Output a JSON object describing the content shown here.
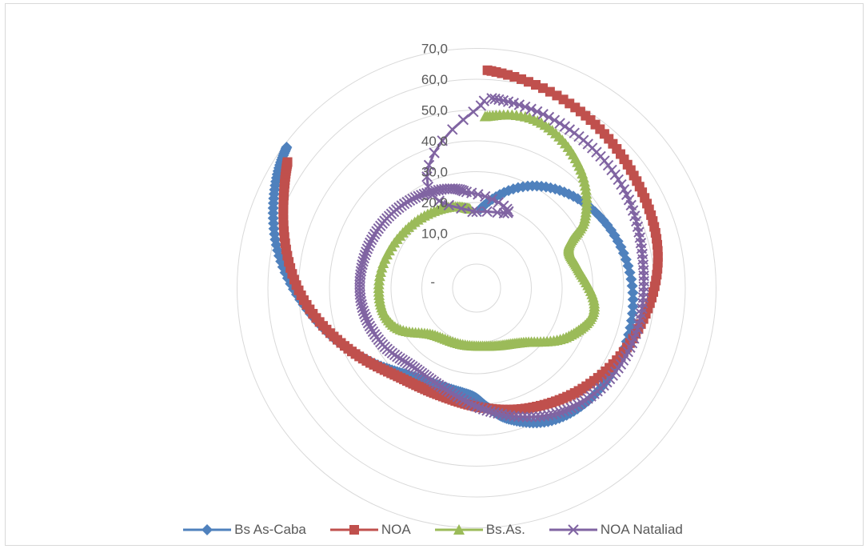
{
  "chart_data": {
    "type": "radar",
    "title": "",
    "radial_ticks": [
      "-",
      "10,0",
      "20,0",
      "30,0",
      "40,0",
      "50,0",
      "60,0",
      "70,0"
    ],
    "rmax": 70,
    "grid": true,
    "legend_position": "bottom",
    "series": [
      {
        "name": "Bs As-Caba",
        "color": "#4f81bd",
        "marker": "diamond",
        "points": [
          [
            0.05,
            18
          ],
          [
            0.5,
            30
          ],
          [
            1.0,
            38
          ],
          [
            1.6,
            43
          ],
          [
            2.2,
            44
          ],
          [
            2.6,
            42
          ],
          [
            2.9,
            36
          ],
          [
            3.05,
            31
          ],
          [
            3.2,
            27
          ],
          [
            3.5,
            26
          ],
          [
            3.8,
            28
          ],
          [
            4.1,
            34
          ],
          [
            4.5,
            45
          ],
          [
            4.9,
            58
          ],
          [
            5.2,
            66
          ],
          [
            5.35,
            69
          ]
        ]
      },
      {
        "name": "NOA",
        "color": "#c0504d",
        "marker": "square",
        "points": [
          [
            0.05,
            63
          ],
          [
            0.5,
            59
          ],
          [
            0.95,
            55
          ],
          [
            1.4,
            52
          ],
          [
            1.85,
            46
          ],
          [
            2.3,
            40
          ],
          [
            2.7,
            35
          ],
          [
            3.1,
            31
          ],
          [
            3.5,
            29
          ],
          [
            3.9,
            31
          ],
          [
            4.3,
            39
          ],
          [
            4.7,
            50
          ],
          [
            5.1,
            60
          ],
          [
            5.3,
            66
          ]
        ]
      },
      {
        "name": "Bs.As.",
        "color": "#9bbb59",
        "marker": "triangle",
        "points": [
          [
            0.05,
            48
          ],
          [
            0.35,
            50
          ],
          [
            0.7,
            44
          ],
          [
            1.0,
            34
          ],
          [
            1.15,
            25
          ],
          [
            1.4,
            26
          ],
          [
            1.75,
            31
          ],
          [
            2.05,
            26
          ],
          [
            2.4,
            16
          ],
          [
            2.8,
            12
          ],
          [
            3.3,
            11
          ],
          [
            3.9,
            13
          ],
          [
            4.3,
            22
          ],
          [
            4.75,
            24
          ],
          [
            5.4,
            22
          ],
          [
            5.95,
            20
          ],
          [
            6.2,
            18
          ]
        ]
      },
      {
        "name": "NOA Nataliad",
        "color": "#8064a2",
        "marker": "x",
        "points": [
          [
            0.08,
            54
          ],
          [
            0.5,
            52
          ],
          [
            0.95,
            50
          ],
          [
            1.4,
            47
          ],
          [
            1.85,
            46
          ],
          [
            2.25,
            44
          ],
          [
            2.6,
            40
          ],
          [
            3.0,
            33
          ],
          [
            3.4,
            27
          ],
          [
            3.8,
            25
          ],
          [
            4.2,
            28
          ],
          [
            4.6,
            30
          ],
          [
            5.0,
            30
          ],
          [
            5.4,
            29
          ],
          [
            5.8,
            27
          ],
          [
            6.15,
            24
          ],
          [
            6.23,
            17
          ],
          [
            0.0,
            17
          ],
          [
            0.04,
            53
          ]
        ]
      }
    ]
  }
}
